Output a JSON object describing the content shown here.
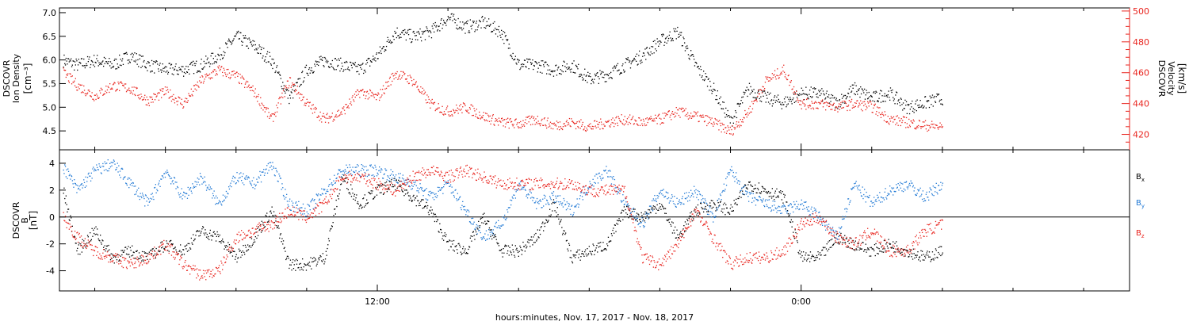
{
  "footer": {
    "xlabel": "hours:minutes, Nov. 17, 2017 - Nov. 18, 2017"
  },
  "chart_data": [
    {
      "type": "scatter",
      "panel": "top",
      "left_axis": {
        "line1": "DSCOVR",
        "line2": "Ion Density",
        "unit": "[cm⁻³]",
        "ylim": [
          4.1,
          7.1
        ],
        "ticks": [
          4.5,
          5.0,
          5.5,
          6.0,
          6.5,
          7.0
        ],
        "tick_labels": [
          "4.5",
          "5.0",
          "5.5",
          "6.0",
          "6.5",
          "7.0"
        ],
        "color": "#000000"
      },
      "right_axis": {
        "line1": "DSCOVR",
        "line2": "Velocity",
        "unit": "[km/s]",
        "ylim": [
          410,
          502
        ],
        "ticks": [
          420,
          440,
          460,
          480,
          500
        ],
        "tick_labels": [
          "420",
          "440",
          "460",
          "480",
          "500"
        ],
        "color": "#e8231d"
      },
      "x": {
        "range_hours": [
          3.0,
          33.3
        ],
        "major_ticks": [
          12,
          24
        ],
        "tick_labels": [
          "12:00",
          "0:00"
        ],
        "minor_step": 2
      },
      "series": [
        {
          "color": "#000000",
          "axis": "left",
          "t": [
            3.1,
            3.5,
            4.0,
            4.5,
            5.0,
            5.5,
            6.0,
            6.5,
            7.0,
            7.5,
            8.0,
            8.5,
            9.0,
            9.5,
            10.0,
            10.5,
            11.0,
            11.5,
            12.0,
            12.5,
            13.0,
            13.5,
            14.0,
            14.5,
            15.0,
            15.5,
            16.0,
            16.5,
            17.0,
            17.5,
            18.0,
            18.5,
            19.0,
            19.5,
            20.0,
            20.5,
            21.0,
            21.5,
            22.0,
            22.5,
            23.0,
            23.5,
            24.0,
            24.5,
            25.0,
            25.5,
            26.0,
            26.5,
            27.0,
            27.5,
            28.0
          ],
          "values": [
            6.0,
            5.9,
            6.0,
            5.9,
            6.1,
            5.9,
            5.8,
            5.8,
            5.9,
            6.1,
            6.5,
            6.3,
            6.0,
            5.2,
            5.8,
            6.0,
            5.9,
            5.8,
            6.1,
            6.6,
            6.5,
            6.6,
            6.9,
            6.7,
            6.8,
            6.6,
            5.9,
            5.9,
            5.8,
            5.9,
            5.6,
            5.7,
            5.9,
            6.1,
            6.4,
            6.6,
            5.9,
            5.4,
            4.7,
            5.4,
            5.2,
            5.1,
            5.3,
            5.3,
            5.1,
            5.4,
            5.2,
            5.3,
            5.0,
            5.1,
            5.2
          ]
        },
        {
          "color": "#e8231d",
          "axis": "right",
          "t": [
            3.1,
            3.5,
            4.0,
            4.5,
            5.0,
            5.5,
            6.0,
            6.5,
            7.0,
            7.5,
            8.0,
            8.5,
            9.0,
            9.5,
            10.0,
            10.5,
            11.0,
            11.5,
            12.0,
            12.5,
            13.0,
            13.5,
            14.0,
            14.5,
            15.0,
            15.5,
            16.0,
            16.5,
            17.0,
            17.5,
            18.0,
            18.5,
            19.0,
            19.5,
            20.0,
            20.5,
            21.0,
            21.5,
            22.0,
            22.5,
            23.0,
            23.5,
            24.0,
            24.5,
            25.0,
            25.5,
            26.0,
            26.5,
            27.0,
            27.5,
            28.0
          ],
          "values": [
            460,
            452,
            445,
            452,
            450,
            442,
            448,
            440,
            455,
            462,
            458,
            448,
            430,
            455,
            440,
            430,
            435,
            448,
            444,
            460,
            455,
            440,
            435,
            438,
            432,
            428,
            427,
            430,
            426,
            428,
            425,
            428,
            430,
            428,
            430,
            435,
            432,
            428,
            422,
            435,
            455,
            462,
            440,
            440,
            438,
            440,
            438,
            430,
            428,
            426,
            425
          ]
        }
      ]
    },
    {
      "type": "scatter",
      "panel": "bottom",
      "left_axis": {
        "line1": "DSCOVR",
        "line2": "B",
        "unit": "[nT]",
        "ylim": [
          -5.5,
          5.0
        ],
        "ticks": [
          -4,
          -2,
          0,
          2,
          4
        ],
        "tick_labels": [
          "-4",
          "-2",
          "0",
          "2",
          "4"
        ],
        "zero_line": true
      },
      "x": {
        "range_hours": [
          3.0,
          33.3
        ],
        "major_ticks": [
          12,
          24
        ],
        "tick_labels": [
          "12:00",
          "0:00"
        ],
        "minor_step": 2
      },
      "series": [
        {
          "name": "Bx",
          "base": "B",
          "sub": "x",
          "color": "#000000",
          "t": [
            3.1,
            3.5,
            4.0,
            4.5,
            5.0,
            5.5,
            6.0,
            6.5,
            7.0,
            7.5,
            8.0,
            8.5,
            9.0,
            9.5,
            10.0,
            10.5,
            11.0,
            11.5,
            12.0,
            12.5,
            13.0,
            13.5,
            14.0,
            14.5,
            15.0,
            15.5,
            16.0,
            16.5,
            17.0,
            17.5,
            18.0,
            18.5,
            19.0,
            19.5,
            20.0,
            20.5,
            21.0,
            21.5,
            22.0,
            22.5,
            23.0,
            23.5,
            24.0,
            24.5,
            25.0,
            25.5,
            26.0,
            26.5,
            27.0,
            27.5,
            28.0
          ],
          "values": [
            2.0,
            -2.5,
            -1.0,
            -3.0,
            -2.5,
            -3.0,
            -2.0,
            -2.5,
            -1.0,
            -1.5,
            -3.0,
            -1.5,
            0.5,
            -3.5,
            -3.5,
            -3.0,
            3.0,
            1.0,
            2.0,
            2.5,
            1.5,
            0.5,
            -2.0,
            -2.5,
            0.0,
            -2.5,
            -2.5,
            -1.5,
            1.0,
            -3.0,
            -2.5,
            -2.0,
            0.5,
            0.0,
            1.0,
            -1.5,
            0.5,
            1.0,
            0.5,
            2.5,
            2.0,
            1.5,
            -3.0,
            -3.0,
            -1.5,
            -2.0,
            -2.5,
            -2.0,
            -2.5,
            -3.0,
            -2.5
          ]
        },
        {
          "name": "By",
          "base": "B",
          "sub": "y",
          "color": "#1f78d4",
          "t": [
            3.1,
            3.5,
            4.0,
            4.5,
            5.0,
            5.5,
            6.0,
            6.5,
            7.0,
            7.5,
            8.0,
            8.5,
            9.0,
            9.5,
            10.0,
            10.5,
            11.0,
            11.5,
            12.0,
            12.5,
            13.0,
            13.5,
            14.0,
            14.5,
            15.0,
            15.5,
            16.0,
            16.5,
            17.0,
            17.5,
            18.0,
            18.5,
            19.0,
            19.5,
            20.0,
            20.5,
            21.0,
            21.5,
            22.0,
            22.5,
            23.0,
            23.5,
            24.0,
            24.5,
            25.0,
            25.5,
            26.0,
            26.5,
            27.0,
            27.5,
            28.0
          ],
          "values": [
            3.8,
            2.0,
            3.5,
            4.0,
            2.5,
            1.0,
            3.5,
            1.5,
            3.0,
            1.0,
            3.0,
            2.5,
            4.0,
            1.0,
            0.5,
            2.0,
            3.5,
            3.5,
            3.5,
            3.0,
            2.5,
            1.5,
            2.5,
            0.5,
            -1.5,
            -0.5,
            2.5,
            1.0,
            1.5,
            0.5,
            2.5,
            3.5,
            1.0,
            -0.5,
            2.0,
            1.0,
            2.0,
            0.0,
            3.5,
            1.5,
            1.0,
            0.5,
            1.0,
            0.0,
            -1.5,
            2.5,
            1.0,
            2.0,
            2.5,
            1.5,
            2.5
          ]
        },
        {
          "name": "Bz",
          "base": "B",
          "sub": "z",
          "color": "#e8231d",
          "t": [
            3.1,
            3.5,
            4.0,
            4.5,
            5.0,
            5.5,
            6.0,
            6.5,
            7.0,
            7.5,
            8.0,
            8.5,
            9.0,
            9.5,
            10.0,
            10.5,
            11.0,
            11.5,
            12.0,
            12.5,
            13.0,
            13.5,
            14.0,
            14.5,
            15.0,
            15.5,
            16.0,
            16.5,
            17.0,
            17.5,
            18.0,
            18.5,
            19.0,
            19.5,
            20.0,
            20.5,
            21.0,
            21.5,
            22.0,
            22.5,
            23.0,
            23.5,
            24.0,
            24.5,
            25.0,
            25.5,
            26.0,
            26.5,
            27.0,
            27.5,
            28.0
          ],
          "values": [
            0.0,
            -1.5,
            -2.5,
            -3.0,
            -3.5,
            -3.0,
            -2.0,
            -3.5,
            -4.3,
            -4.0,
            -1.5,
            -1.0,
            -0.5,
            0.5,
            0.0,
            1.0,
            3.0,
            3.0,
            2.5,
            2.0,
            3.0,
            3.5,
            3.0,
            3.5,
            3.0,
            2.5,
            2.5,
            2.5,
            2.5,
            2.5,
            2.0,
            2.0,
            2.0,
            -3.0,
            -3.5,
            -2.0,
            0.5,
            -1.5,
            -3.5,
            -3.0,
            -3.0,
            -2.5,
            -0.5,
            0.0,
            -1.5,
            -2.0,
            -1.0,
            -2.5,
            -2.5,
            -1.0,
            -0.5
          ]
        }
      ]
    }
  ]
}
